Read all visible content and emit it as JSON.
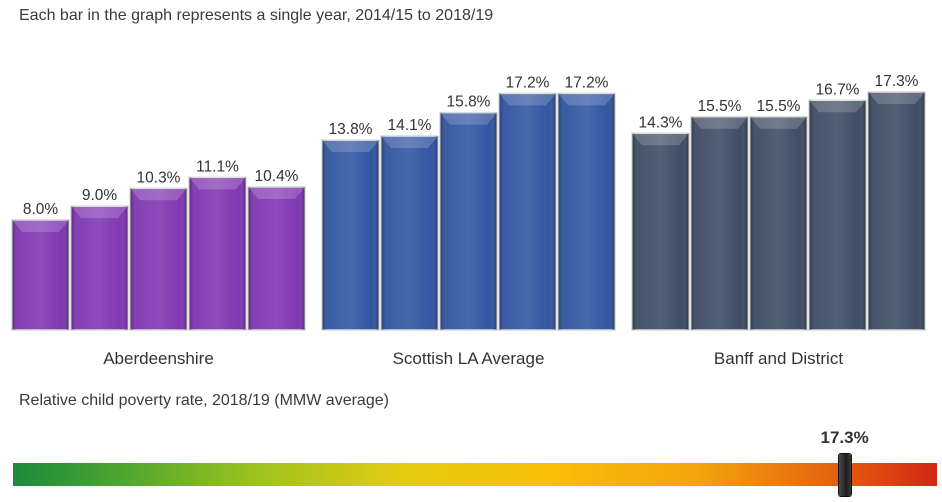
{
  "caption_top": "Each bar in the graph represents a single year, 2014/15 to 2018/19",
  "caption_scale": "Relative child poverty rate, 2018/19 (MMW average)",
  "colors": {
    "aberdeenshire": "#7b2fae",
    "scottish_la_average": "#2a4f9e",
    "banff_and_district": "#37455e"
  },
  "chart_data": {
    "type": "bar",
    "title": "",
    "xlabel": "",
    "ylabel": "",
    "ylim": [
      0,
      17.3
    ],
    "categories": [
      "Aberdeenshire",
      "Scottish LA Average",
      "Banff and District"
    ],
    "groups": [
      {
        "name": "Aberdeenshire",
        "values": [
          8.0,
          9.0,
          10.3,
          11.1,
          10.4
        ],
        "labels": [
          "8.0%",
          "9.0%",
          "10.3%",
          "11.1%",
          "10.4%"
        ]
      },
      {
        "name": "Scottish LA Average",
        "values": [
          13.8,
          14.1,
          15.8,
          17.2,
          17.2
        ],
        "labels": [
          "13.8%",
          "14.1%",
          "15.8%",
          "17.2%",
          "17.2%"
        ]
      },
      {
        "name": "Banff and District",
        "values": [
          14.3,
          15.5,
          15.5,
          16.7,
          17.3
        ],
        "labels": [
          "14.3%",
          "15.5%",
          "15.5%",
          "16.7%",
          "17.3%"
        ]
      }
    ]
  },
  "scale": {
    "value": 17.3,
    "value_label": "17.3%",
    "position_fraction": 0.9
  }
}
